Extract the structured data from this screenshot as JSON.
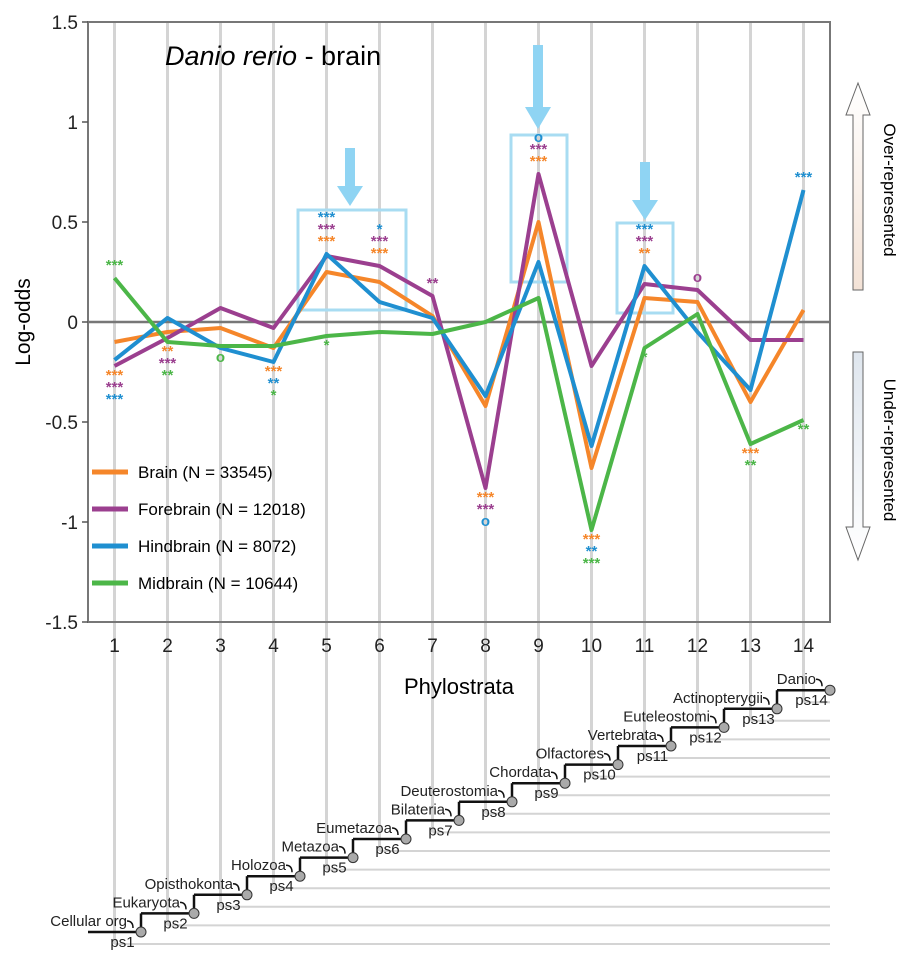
{
  "chart_data": {
    "type": "line",
    "title_species": "Danio rerio",
    "title_suffix": " - brain",
    "x_label": "Phylostrata",
    "y_label": "Log-odds",
    "over_label": "Over-represented",
    "under_label": "Under-represented",
    "categories": [
      "1",
      "2",
      "3",
      "4",
      "5",
      "6",
      "7",
      "8",
      "9",
      "10",
      "11",
      "12",
      "13",
      "14"
    ],
    "ylim": [
      -1.5,
      1.5
    ],
    "yticks": [
      -1.5,
      -1,
      -0.5,
      0,
      0.5,
      1,
      1.5
    ],
    "grid": true,
    "legend": "lower left",
    "series": [
      {
        "name": "Brain (N = 33545)",
        "color": "#f5862a",
        "values": [
          -0.1,
          -0.05,
          -0.03,
          -0.13,
          0.25,
          0.2,
          0.03,
          -0.42,
          0.5,
          -0.73,
          0.12,
          0.1,
          -0.4,
          0.06
        ],
        "significance": [
          "***",
          "**",
          null,
          "***",
          "***",
          "***",
          null,
          "***",
          "***",
          "***",
          "**",
          null,
          "***",
          null
        ]
      },
      {
        "name": "Forebrain (N = 12018)",
        "color": "#9b3f8f",
        "values": [
          -0.22,
          -0.08,
          0.07,
          -0.03,
          0.33,
          0.28,
          0.13,
          -0.83,
          0.74,
          -0.22,
          0.19,
          0.16,
          -0.09,
          -0.09
        ],
        "significance": [
          "***",
          "***",
          null,
          null,
          "***",
          "***",
          "**",
          "***",
          "***",
          null,
          "***",
          "o",
          null,
          null
        ]
      },
      {
        "name": "Hindbrain (N = 8072)",
        "color": "#1f8fd0",
        "values": [
          -0.19,
          0.02,
          -0.13,
          -0.2,
          0.34,
          0.1,
          0.02,
          -0.37,
          0.3,
          -0.62,
          0.28,
          -0.05,
          -0.34,
          0.66
        ],
        "significance": [
          "***",
          null,
          null,
          "**",
          "***",
          "*",
          null,
          "o",
          "o",
          "**",
          "***",
          null,
          null,
          "***"
        ]
      },
      {
        "name": "Midbrain (N = 10644)",
        "color": "#4cb648",
        "values": [
          0.22,
          -0.1,
          -0.12,
          -0.12,
          -0.07,
          -0.05,
          -0.06,
          0.0,
          0.12,
          -1.04,
          -0.13,
          0.04,
          -0.61,
          -0.49
        ],
        "significance": [
          "***",
          "**",
          "o",
          "*",
          "*",
          null,
          null,
          null,
          null,
          "***",
          "*",
          null,
          "**",
          "**"
        ]
      }
    ],
    "phylostrata_tree": [
      {
        "clade": "Cellular org",
        "ps": "ps1"
      },
      {
        "clade": "Eukaryota",
        "ps": "ps2"
      },
      {
        "clade": "Opisthokonta",
        "ps": "ps3"
      },
      {
        "clade": "Holozoa",
        "ps": "ps4"
      },
      {
        "clade": "Metazoa",
        "ps": "ps5"
      },
      {
        "clade": "Eumetazoa",
        "ps": "ps6"
      },
      {
        "clade": "Bilateria",
        "ps": "ps7"
      },
      {
        "clade": "Deuterostomia",
        "ps": "ps8"
      },
      {
        "clade": "Chordata",
        "ps": "ps9"
      },
      {
        "clade": "Olfactores",
        "ps": "ps10"
      },
      {
        "clade": "Vertebrata",
        "ps": "ps11"
      },
      {
        "clade": "Euteleostomi",
        "ps": "ps12"
      },
      {
        "clade": "Actinopterygii",
        "ps": "ps13"
      },
      {
        "clade": "Danio",
        "ps": "ps14"
      }
    ]
  }
}
